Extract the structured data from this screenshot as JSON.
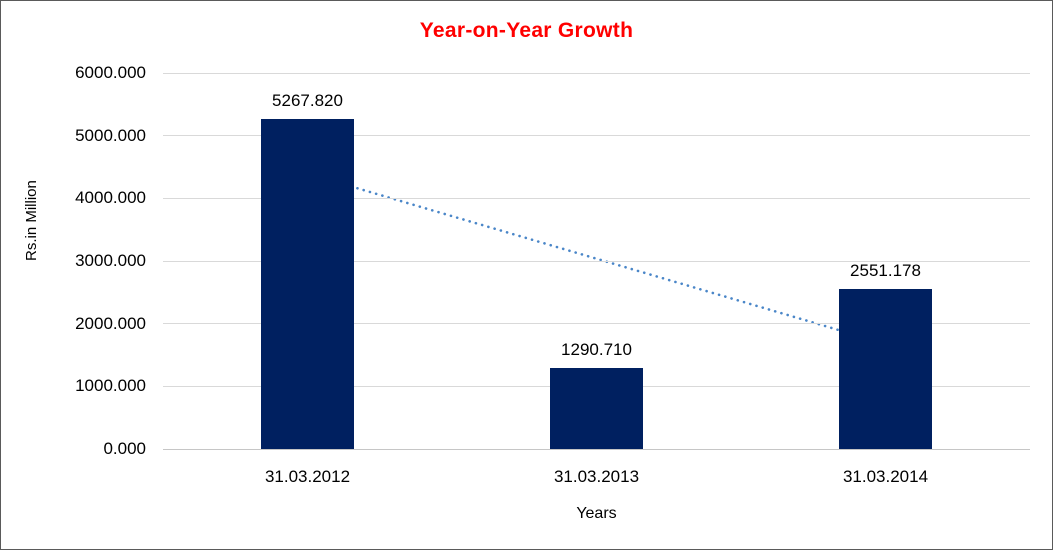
{
  "chart_data": {
    "type": "bar",
    "title": "Year-on-Year Growth",
    "title_color": "#ff0000",
    "xlabel": "Years",
    "ylabel": "Rs.in Million",
    "categories": [
      "31.03.2012",
      "31.03.2013",
      "31.03.2014"
    ],
    "values": [
      5267.82,
      1290.71,
      2551.178
    ],
    "value_labels": [
      "5267.820",
      "1290.710",
      "2551.178"
    ],
    "ylim": [
      0,
      6000
    ],
    "ytick_step": 1000,
    "ytick_labels": [
      "0.000",
      "1000.000",
      "2000.000",
      "3000.000",
      "4000.000",
      "5000.000",
      "6000.000"
    ],
    "grid": true,
    "legend": "none",
    "colors": {
      "bar": "#002060",
      "gridline": "#d9d9d9",
      "axis_line": "#c6c6c6",
      "text": "#000000",
      "trendline": "#4a86c8",
      "frame_border": "#5a5a5a"
    },
    "trendline": {
      "type": "linear",
      "style": "dotted",
      "color": "#4a86c8",
      "start_value": 4394.9,
      "end_value": 1678.2
    }
  }
}
